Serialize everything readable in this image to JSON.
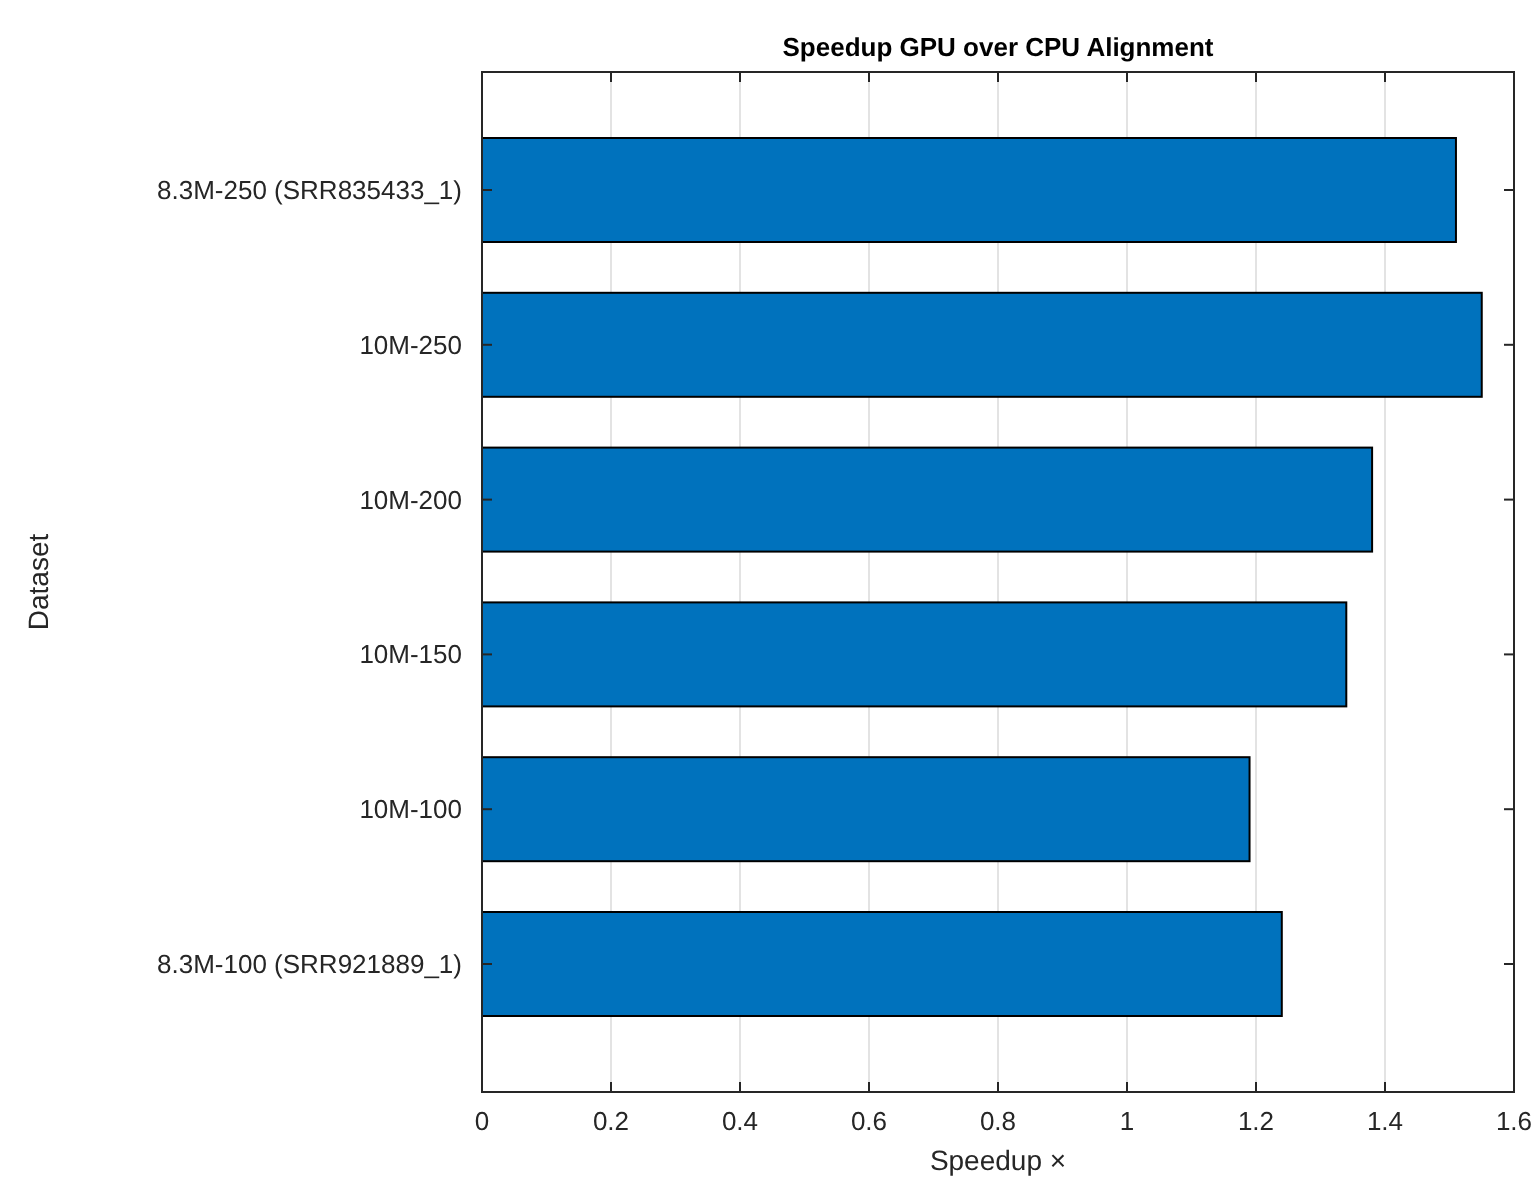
{
  "chart_data": {
    "type": "bar",
    "orientation": "horizontal",
    "title": "Speedup GPU over CPU Alignment",
    "xlabel": "Speedup  ×",
    "ylabel": "Dataset",
    "categories": [
      "8.3M-250 (SRR835433_1)",
      "10M-250",
      "10M-200",
      "10M-150",
      "10M-100",
      "8.3M-100 (SRR921889_1)"
    ],
    "values": [
      1.51,
      1.55,
      1.38,
      1.34,
      1.19,
      1.24
    ],
    "color": "#0072bd",
    "xlim": [
      0,
      1.6
    ],
    "xticks": [
      0,
      0.2,
      0.4,
      0.6,
      0.8,
      1,
      1.2,
      1.4,
      1.6
    ],
    "grid": "x"
  }
}
